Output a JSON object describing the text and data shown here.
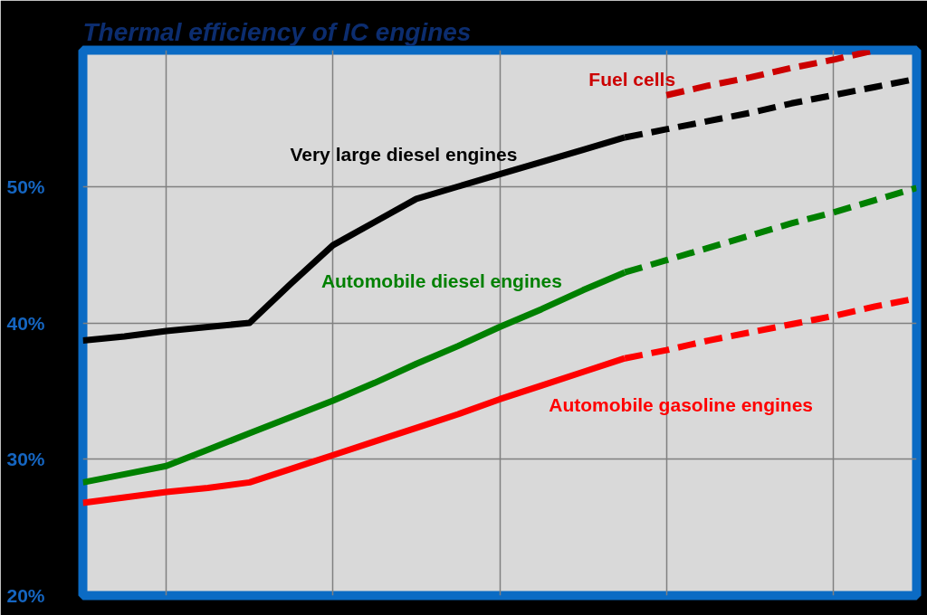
{
  "chart_data": {
    "type": "line",
    "title": "Thermal efficiency of IC engines",
    "categories": [
      null,
      null,
      null,
      null,
      null,
      null,
      null,
      null,
      null,
      null,
      null,
      null,
      null,
      null,
      null,
      null,
      null,
      null,
      null,
      null,
      null
    ],
    "ylim": [
      20,
      60
    ],
    "yticks": [
      {
        "value": 20,
        "label": "20%"
      },
      {
        "value": 30,
        "label": "30%"
      },
      {
        "value": 40,
        "label": "40%"
      },
      {
        "value": 50,
        "label": "50%"
      }
    ],
    "grid": true,
    "tick_labels": "y",
    "series": [
      {
        "name": "Very large diesel engines",
        "color": "#000000",
        "line_style": "solid",
        "values": [
          38.7,
          39.0,
          39.4,
          39.7,
          40.0,
          42.9,
          45.7,
          47.4,
          49.1,
          50.0,
          50.9,
          51.8,
          52.7,
          53.6,
          null,
          null,
          null,
          null,
          null,
          null,
          null
        ]
      },
      {
        "color": "#000000",
        "line_style": "dashed",
        "values": [
          null,
          null,
          null,
          null,
          null,
          null,
          null,
          null,
          null,
          null,
          null,
          null,
          null,
          53.6,
          54.2,
          54.8,
          55.4,
          56.1,
          56.7,
          57.3,
          57.9
        ]
      },
      {
        "name": "Automobile diesel engines",
        "color": "#008000",
        "line_style": "solid",
        "values": [
          28.3,
          28.9,
          29.5,
          30.7,
          31.9,
          33.1,
          34.3,
          35.6,
          37.0,
          38.3,
          39.7,
          41.0,
          42.4,
          43.7,
          null,
          null,
          null,
          null,
          null,
          null,
          null
        ]
      },
      {
        "color": "#008000",
        "line_style": "dashed",
        "values": [
          null,
          null,
          null,
          null,
          null,
          null,
          null,
          null,
          null,
          null,
          null,
          null,
          null,
          43.7,
          44.6,
          45.5,
          46.4,
          47.3,
          48.1,
          49.0,
          49.9
        ]
      },
      {
        "name": "Automobile gasoline engines",
        "color": "#ff0000",
        "line_style": "solid",
        "values": [
          26.8,
          27.2,
          27.6,
          27.9,
          28.3,
          29.3,
          30.3,
          31.3,
          32.3,
          33.3,
          34.4,
          35.4,
          36.4,
          37.4,
          null,
          null,
          null,
          null,
          null,
          null,
          null
        ]
      },
      {
        "color": "#ff0000",
        "line_style": "dashed",
        "values": [
          null,
          null,
          null,
          null,
          null,
          null,
          null,
          null,
          null,
          null,
          null,
          null,
          null,
          37.4,
          38.0,
          38.7,
          39.3,
          39.9,
          40.5,
          41.2,
          41.8
        ]
      },
      {
        "name": "Fuel cells",
        "color": "#cc0000",
        "line_style": "dashed",
        "values": [
          null,
          null,
          null,
          null,
          null,
          null,
          null,
          null,
          null,
          null,
          null,
          null,
          null,
          null,
          56.7,
          57.4,
          58.0,
          58.7,
          59.3,
          60.0,
          null
        ]
      }
    ]
  }
}
